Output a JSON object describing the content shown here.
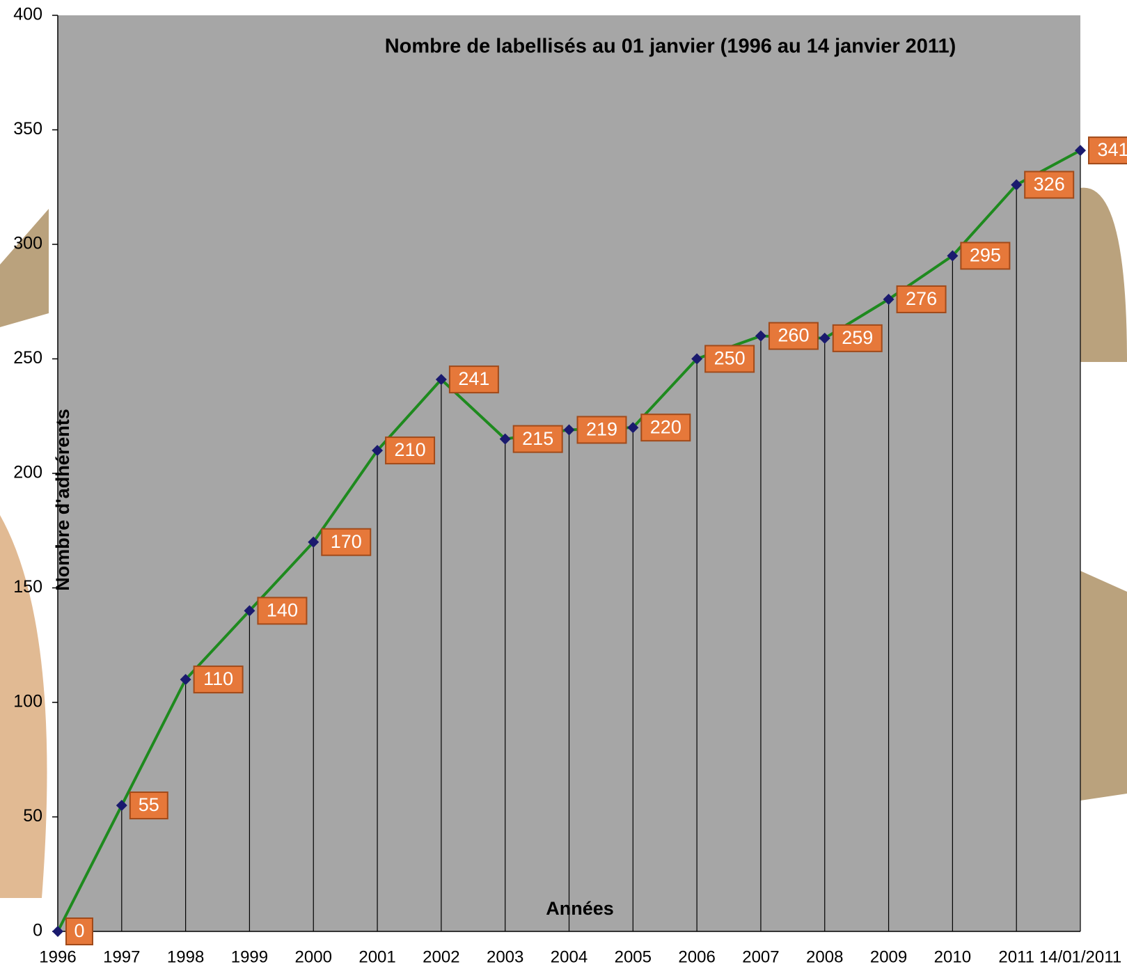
{
  "chart_data": {
    "type": "line",
    "title": "Nombre de labellisés au 01 janvier  (1996 au 14 janvier 2011)",
    "x_label": "Années",
    "y_label": "Nombre d'adhérents",
    "categories": [
      "1996",
      "1997",
      "1998",
      "1999",
      "2000",
      "2001",
      "2002",
      "2003",
      "2004",
      "2005",
      "2006",
      "2007",
      "2008",
      "2009",
      "2010",
      "2011",
      "14/01/2011"
    ],
    "series": [
      {
        "color": "#1e8a1e",
        "values": [
          0,
          55,
          110,
          140,
          170,
          210,
          241,
          215,
          219,
          220,
          250,
          260,
          259,
          276,
          295,
          326,
          341
        ]
      }
    ],
    "ylim": [
      0,
      400
    ],
    "yticks": [
      0,
      50,
      100,
      150,
      200,
      250,
      300,
      350,
      400
    ]
  }
}
